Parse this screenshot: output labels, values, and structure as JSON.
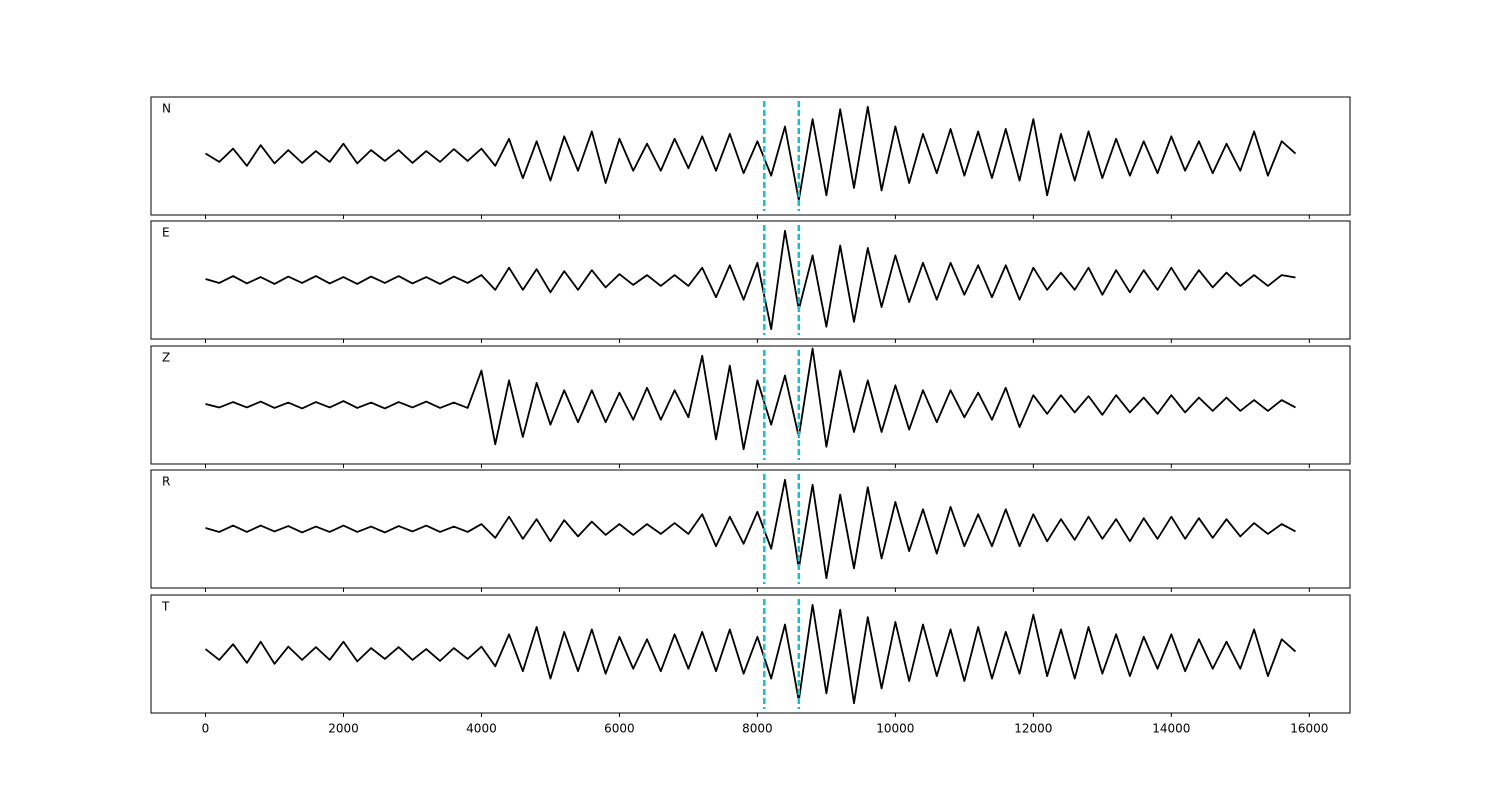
{
  "chart_data": {
    "type": "line",
    "x": [
      0,
      200,
      400,
      600,
      800,
      1000,
      1200,
      1400,
      1600,
      1800,
      2000,
      2200,
      2400,
      2600,
      2800,
      3000,
      3200,
      3400,
      3600,
      3800,
      4000,
      4200,
      4400,
      4600,
      4800,
      5000,
      5200,
      5400,
      5600,
      5800,
      6000,
      6200,
      6400,
      6600,
      6800,
      7000,
      7200,
      7400,
      7600,
      7800,
      8000,
      8200,
      8400,
      8600,
      8800,
      9000,
      9200,
      9400,
      9600,
      9800,
      10000,
      10200,
      10400,
      10600,
      10800,
      11000,
      11200,
      11400,
      11600,
      11800,
      12000,
      12200,
      12400,
      12600,
      12800,
      13000,
      13200,
      13400,
      13600,
      13800,
      14000,
      14200,
      14400,
      14600,
      14800,
      15000,
      15200,
      15400,
      15600,
      15800
    ],
    "series": [
      {
        "name": "N",
        "color": "#000000",
        "values": [
          0.05,
          -0.12,
          0.15,
          -0.2,
          0.22,
          -0.15,
          0.12,
          -0.14,
          0.1,
          -0.12,
          0.25,
          -0.15,
          0.12,
          -0.1,
          0.12,
          -0.14,
          0.1,
          -0.12,
          0.14,
          -0.1,
          0.15,
          -0.2,
          0.35,
          -0.45,
          0.3,
          -0.5,
          0.4,
          -0.3,
          0.5,
          -0.55,
          0.35,
          -0.3,
          0.25,
          -0.3,
          0.35,
          -0.25,
          0.4,
          -0.3,
          0.45,
          -0.35,
          0.3,
          -0.4,
          0.6,
          -0.9,
          0.75,
          -0.8,
          0.95,
          -0.65,
          1.0,
          -0.7,
          0.6,
          -0.55,
          0.45,
          -0.35,
          0.55,
          -0.4,
          0.5,
          -0.45,
          0.55,
          -0.5,
          0.75,
          -0.8,
          0.45,
          -0.5,
          0.5,
          -0.45,
          0.35,
          -0.4,
          0.3,
          -0.35,
          0.4,
          -0.3,
          0.3,
          -0.35,
          0.25,
          -0.3,
          0.5,
          -0.4,
          0.3,
          0.05
        ]
      },
      {
        "name": "E",
        "color": "#000000",
        "values": [
          0.02,
          -0.06,
          0.08,
          -0.07,
          0.06,
          -0.08,
          0.07,
          -0.06,
          0.08,
          -0.07,
          0.06,
          -0.08,
          0.07,
          -0.06,
          0.08,
          -0.07,
          0.06,
          -0.08,
          0.07,
          -0.06,
          0.1,
          -0.2,
          0.25,
          -0.2,
          0.22,
          -0.25,
          0.18,
          -0.2,
          0.2,
          -0.15,
          0.12,
          -0.1,
          0.1,
          -0.12,
          0.1,
          -0.12,
          0.25,
          -0.35,
          0.3,
          -0.4,
          0.35,
          -1.0,
          1.0,
          -0.6,
          0.5,
          -0.95,
          0.7,
          -0.85,
          0.65,
          -0.55,
          0.5,
          -0.45,
          0.35,
          -0.4,
          0.35,
          -0.3,
          0.3,
          -0.35,
          0.3,
          -0.4,
          0.25,
          -0.2,
          0.15,
          -0.2,
          0.25,
          -0.3,
          0.2,
          -0.25,
          0.2,
          -0.2,
          0.25,
          -0.2,
          0.2,
          -0.15,
          0.15,
          -0.12,
          0.1,
          -0.12,
          0.1,
          0.05
        ]
      },
      {
        "name": "Z",
        "color": "#000000",
        "values": [
          0.02,
          -0.05,
          0.06,
          -0.05,
          0.07,
          -0.06,
          0.05,
          -0.07,
          0.06,
          -0.05,
          0.08,
          -0.06,
          0.05,
          -0.07,
          0.06,
          -0.05,
          0.07,
          -0.06,
          0.05,
          -0.06,
          0.7,
          -0.8,
          0.5,
          -0.65,
          0.45,
          -0.4,
          0.3,
          -0.35,
          0.3,
          -0.35,
          0.25,
          -0.3,
          0.35,
          -0.3,
          0.3,
          -0.25,
          1.0,
          -0.7,
          0.8,
          -0.9,
          0.5,
          -0.4,
          0.6,
          -0.65,
          1.15,
          -0.85,
          0.7,
          -0.55,
          0.5,
          -0.55,
          0.4,
          -0.5,
          0.3,
          -0.35,
          0.3,
          -0.25,
          0.25,
          -0.3,
          0.35,
          -0.45,
          0.2,
          -0.18,
          0.2,
          -0.15,
          0.18,
          -0.2,
          0.2,
          -0.15,
          0.15,
          -0.18,
          0.2,
          -0.15,
          0.15,
          -0.12,
          0.15,
          -0.12,
          0.1,
          -0.12,
          0.1,
          -0.05
        ]
      },
      {
        "name": "R",
        "color": "#000000",
        "values": [
          0.02,
          -0.06,
          0.07,
          -0.06,
          0.07,
          -0.05,
          0.06,
          -0.07,
          0.05,
          -0.06,
          0.07,
          -0.06,
          0.05,
          -0.07,
          0.06,
          -0.05,
          0.07,
          -0.06,
          0.05,
          -0.06,
          0.1,
          -0.18,
          0.25,
          -0.2,
          0.2,
          -0.25,
          0.18,
          -0.15,
          0.15,
          -0.12,
          0.1,
          -0.12,
          0.1,
          -0.1,
          0.12,
          -0.1,
          0.3,
          -0.35,
          0.25,
          -0.3,
          0.35,
          -0.4,
          1.0,
          -0.8,
          0.9,
          -1.0,
          0.7,
          -0.8,
          0.85,
          -0.6,
          0.55,
          -0.45,
          0.4,
          -0.5,
          0.45,
          -0.35,
          0.3,
          -0.35,
          0.4,
          -0.35,
          0.3,
          -0.25,
          0.2,
          -0.22,
          0.25,
          -0.2,
          0.2,
          -0.25,
          0.22,
          -0.2,
          0.25,
          -0.2,
          0.22,
          -0.18,
          0.2,
          -0.15,
          0.12,
          -0.1,
          0.1,
          -0.05
        ]
      },
      {
        "name": "T",
        "color": "#000000",
        "values": [
          0.1,
          -0.12,
          0.2,
          -0.18,
          0.25,
          -0.2,
          0.15,
          -0.12,
          0.14,
          -0.12,
          0.25,
          -0.15,
          0.12,
          -0.1,
          0.14,
          -0.12,
          0.1,
          -0.14,
          0.12,
          -0.1,
          0.15,
          -0.25,
          0.4,
          -0.35,
          0.55,
          -0.5,
          0.45,
          -0.35,
          0.5,
          -0.4,
          0.35,
          -0.3,
          0.3,
          -0.35,
          0.4,
          -0.3,
          0.45,
          -0.35,
          0.5,
          -0.4,
          0.35,
          -0.5,
          0.6,
          -0.95,
          1.0,
          -0.8,
          0.9,
          -1.0,
          0.75,
          -0.7,
          0.65,
          -0.55,
          0.6,
          -0.45,
          0.5,
          -0.55,
          0.55,
          -0.5,
          0.45,
          -0.4,
          0.8,
          -0.45,
          0.5,
          -0.5,
          0.55,
          -0.4,
          0.4,
          -0.45,
          0.35,
          -0.3,
          0.4,
          -0.35,
          0.3,
          -0.3,
          0.25,
          -0.3,
          0.5,
          -0.45,
          0.3,
          0.05
        ]
      }
    ],
    "xlim": [
      -790,
      16590
    ],
    "xticks": [
      0,
      2000,
      4000,
      6000,
      8000,
      10000,
      12000,
      14000,
      16000
    ],
    "ylim": [
      -1.2,
      1.2
    ],
    "markers": {
      "x": [
        8100,
        8600
      ],
      "color": "#17becf"
    }
  }
}
